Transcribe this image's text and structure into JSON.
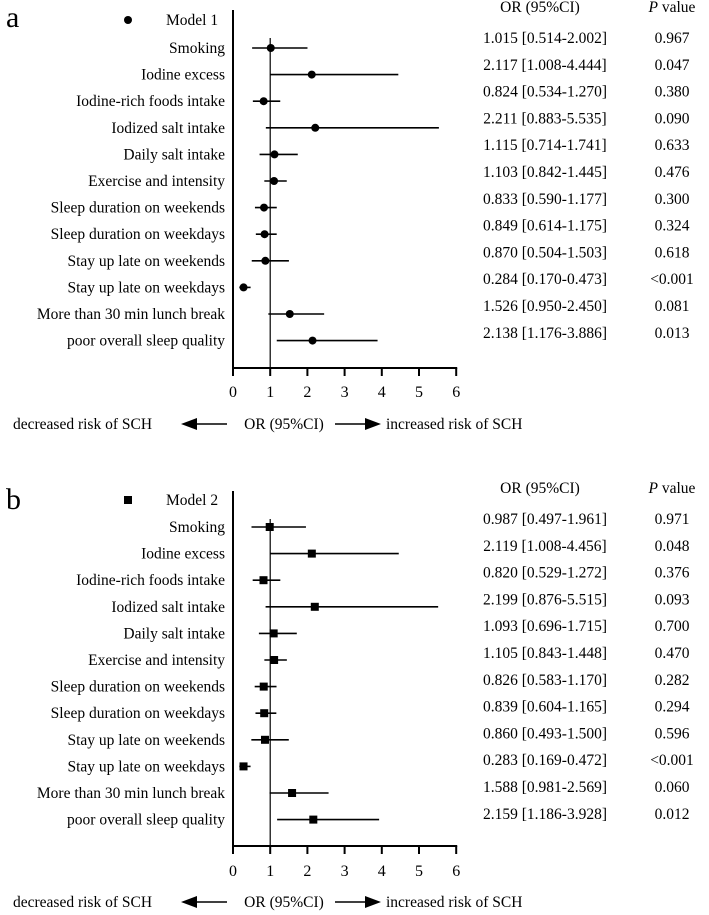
{
  "chart_data": [
    {
      "type": "forest",
      "panel_label": "a",
      "legend": "Model 1",
      "marker": "circle",
      "xlabel": "OR (95%CI)",
      "x_ticks": [
        "0",
        "1",
        "2",
        "3",
        "4",
        "5",
        "6"
      ],
      "xlim": [
        0,
        6
      ],
      "reference_line": 1,
      "left_arrow_label": "decreased risk of SCH",
      "right_arrow_label": "increased risk of SCH",
      "col_or_header": "OR (95%CI)",
      "col_p_header_italic": "P",
      "col_p_header_rest": " value",
      "rows": [
        {
          "label": "Smoking",
          "or": 1.015,
          "lo": 0.514,
          "hi": 2.002,
          "ci_text": "1.015 [0.514-2.002]",
          "p": "0.967"
        },
        {
          "label": "Iodine excess",
          "or": 2.117,
          "lo": 1.008,
          "hi": 4.444,
          "ci_text": "2.117 [1.008-4.444]",
          "p": "0.047"
        },
        {
          "label": "Iodine-rich foods intake",
          "or": 0.824,
          "lo": 0.534,
          "hi": 1.27,
          "ci_text": "0.824 [0.534-1.270]",
          "p": "0.380"
        },
        {
          "label": "Iodized salt intake",
          "or": 2.211,
          "lo": 0.883,
          "hi": 5.535,
          "ci_text": "2.211 [0.883-5.535]",
          "p": "0.090"
        },
        {
          "label": "Daily salt intake",
          "or": 1.115,
          "lo": 0.714,
          "hi": 1.741,
          "ci_text": "1.115 [0.714-1.741]",
          "p": "0.633"
        },
        {
          "label": "Exercise and intensity",
          "or": 1.103,
          "lo": 0.842,
          "hi": 1.445,
          "ci_text": "1.103 [0.842-1.445]",
          "p": "0.476"
        },
        {
          "label": "Sleep duration on weekends",
          "or": 0.833,
          "lo": 0.59,
          "hi": 1.177,
          "ci_text": "0.833 [0.590-1.177]",
          "p": "0.300"
        },
        {
          "label": "Sleep duration on weekdays",
          "or": 0.849,
          "lo": 0.614,
          "hi": 1.175,
          "ci_text": "0.849 [0.614-1.175]",
          "p": "0.324"
        },
        {
          "label": "Stay up late on weekends",
          "or": 0.87,
          "lo": 0.504,
          "hi": 1.503,
          "ci_text": "0.870 [0.504-1.503]",
          "p": "0.618"
        },
        {
          "label": "Stay up late on weekdays",
          "or": 0.284,
          "lo": 0.17,
          "hi": 0.473,
          "ci_text": "0.284 [0.170-0.473]",
          "p": "<0.001"
        },
        {
          "label": "More than 30 min lunch break",
          "or": 1.526,
          "lo": 0.95,
          "hi": 2.45,
          "ci_text": "1.526 [0.950-2.450]",
          "p": "0.081"
        },
        {
          "label": "poor overall sleep quality",
          "or": 2.138,
          "lo": 1.176,
          "hi": 3.886,
          "ci_text": "2.138 [1.176-3.886]",
          "p": "0.013"
        }
      ]
    },
    {
      "type": "forest",
      "panel_label": "b",
      "legend": "Model 2",
      "marker": "square",
      "xlabel": "OR (95%CI)",
      "x_ticks": [
        "0",
        "1",
        "2",
        "3",
        "4",
        "5",
        "6"
      ],
      "xlim": [
        0,
        6
      ],
      "reference_line": 1,
      "left_arrow_label": "decreased risk of SCH",
      "right_arrow_label": "increased risk of SCH",
      "col_or_header": "OR (95%CI)",
      "col_p_header_italic": "P",
      "col_p_header_rest": " value",
      "rows": [
        {
          "label": "Smoking",
          "or": 0.987,
          "lo": 0.497,
          "hi": 1.961,
          "ci_text": "0.987 [0.497-1.961]",
          "p": "0.971"
        },
        {
          "label": "Iodine excess",
          "or": 2.119,
          "lo": 1.008,
          "hi": 4.456,
          "ci_text": "2.119 [1.008-4.456]",
          "p": "0.048"
        },
        {
          "label": "Iodine-rich foods intake",
          "or": 0.82,
          "lo": 0.529,
          "hi": 1.272,
          "ci_text": "0.820 [0.529-1.272]",
          "p": "0.376"
        },
        {
          "label": "Iodized salt intake",
          "or": 2.199,
          "lo": 0.876,
          "hi": 5.515,
          "ci_text": "2.199 [0.876-5.515]",
          "p": "0.093"
        },
        {
          "label": "Daily salt intake",
          "or": 1.093,
          "lo": 0.696,
          "hi": 1.715,
          "ci_text": "1.093 [0.696-1.715]",
          "p": "0.700"
        },
        {
          "label": "Exercise and intensity",
          "or": 1.105,
          "lo": 0.843,
          "hi": 1.448,
          "ci_text": "1.105 [0.843-1.448]",
          "p": "0.470"
        },
        {
          "label": "Sleep duration on weekends",
          "or": 0.826,
          "lo": 0.583,
          "hi": 1.17,
          "ci_text": "0.826 [0.583-1.170]",
          "p": "0.282"
        },
        {
          "label": "Sleep duration on weekdays",
          "or": 0.839,
          "lo": 0.604,
          "hi": 1.165,
          "ci_text": "0.839 [0.604-1.165]",
          "p": "0.294"
        },
        {
          "label": "Stay up late on weekends",
          "or": 0.86,
          "lo": 0.493,
          "hi": 1.5,
          "ci_text": "0.860 [0.493-1.500]",
          "p": "0.596"
        },
        {
          "label": "Stay up late on weekdays",
          "or": 0.283,
          "lo": 0.169,
          "hi": 0.472,
          "ci_text": "0.283 [0.169-0.472]",
          "p": "<0.001"
        },
        {
          "label": "More than 30 min lunch break",
          "or": 1.588,
          "lo": 0.981,
          "hi": 2.569,
          "ci_text": "1.588 [0.981-2.569]",
          "p": "0.060"
        },
        {
          "label": "poor overall sleep quality",
          "or": 2.159,
          "lo": 1.186,
          "hi": 3.928,
          "ci_text": "2.159 [1.186-3.928]",
          "p": "0.012"
        }
      ]
    }
  ]
}
